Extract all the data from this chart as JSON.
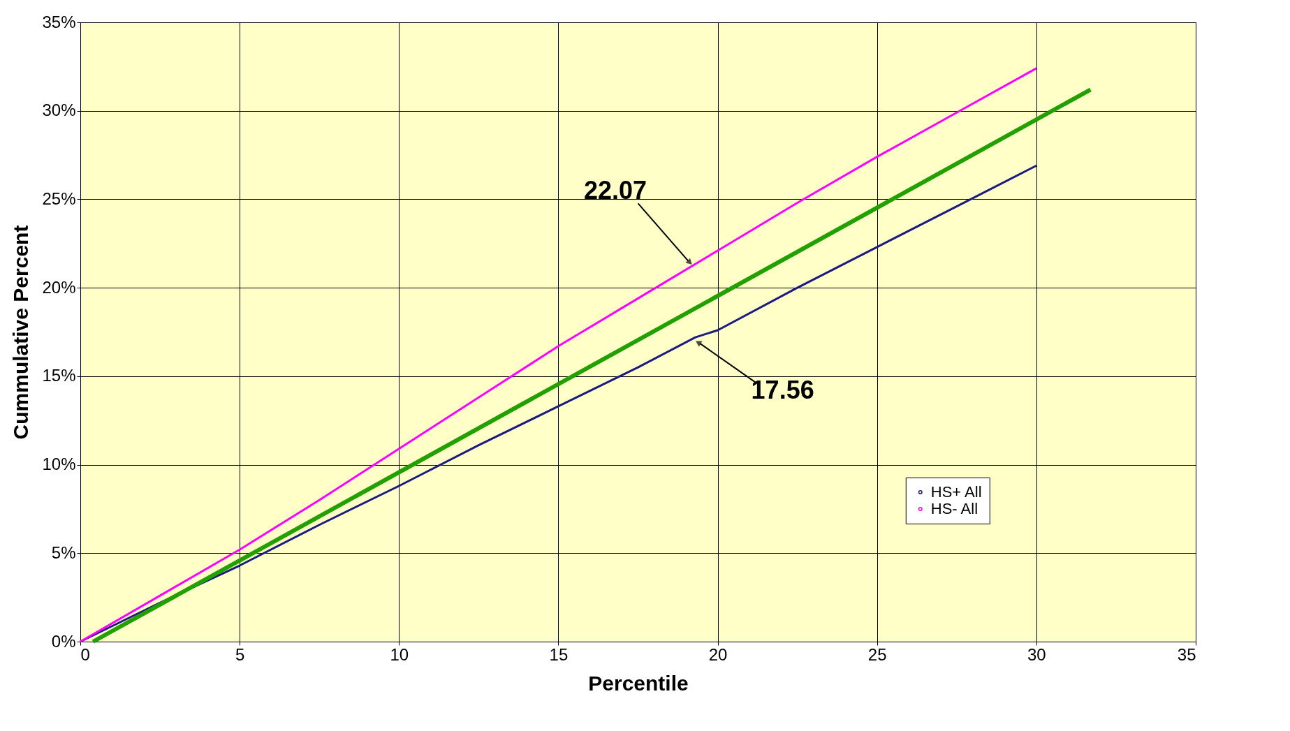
{
  "chart_data": {
    "type": "line",
    "xlabel": "Percentile",
    "ylabel": "Cummulative Percent",
    "xlim": [
      0,
      35
    ],
    "xticks": [
      0,
      5,
      10,
      15,
      20,
      25,
      30,
      35
    ],
    "ylim": [
      0,
      35
    ],
    "yticks": [
      {
        "value": 0,
        "label": "0%"
      },
      {
        "value": 5,
        "label": "5%"
      },
      {
        "value": 10,
        "label": "10%"
      },
      {
        "value": 15,
        "label": "15%"
      },
      {
        "value": 20,
        "label": "20%"
      },
      {
        "value": 25,
        "label": "25%"
      },
      {
        "value": 30,
        "label": "30%"
      },
      {
        "value": 35,
        "label": "35%"
      }
    ],
    "grid": true,
    "legend": "bottom right",
    "series": [
      {
        "name": "HS+ All",
        "color": "#1a1a80",
        "x": [
          0,
          2.5,
          5,
          7.5,
          10,
          12.5,
          15,
          17.5,
          19.3,
          20,
          22.5,
          25,
          27.5,
          30
        ],
        "values": [
          0,
          2.2,
          4.3,
          6.6,
          8.8,
          11.1,
          13.3,
          15.5,
          17.2,
          17.6,
          20.0,
          22.3,
          24.6,
          26.9
        ]
      },
      {
        "name": "HS- All",
        "color": "#ff00ff",
        "x": [
          0,
          2.5,
          5,
          7.5,
          10,
          12.5,
          15,
          17.5,
          20,
          22.5,
          25,
          27.5,
          30
        ],
        "values": [
          0,
          2.6,
          5.2,
          8.0,
          10.9,
          13.8,
          16.7,
          19.4,
          22.1,
          24.8,
          27.4,
          29.9,
          32.4
        ]
      },
      {
        "type": "line",
        "color": "#22a000",
        "x": [
          0.4,
          31.7
        ],
        "values": [
          0,
          31.2
        ]
      }
    ],
    "annotations": [
      {
        "text": "22.07",
        "x": 19.2,
        "y": 21.3
      },
      {
        "text": "17.56",
        "x": 19.3,
        "y": 17.0
      }
    ]
  }
}
